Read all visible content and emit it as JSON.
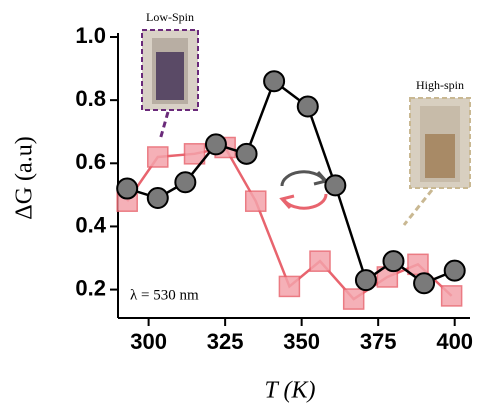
{
  "chart_data": {
    "type": "line",
    "xlabel": "T (K)",
    "ylabel": "ΔG (a.u)",
    "xlim": [
      290,
      405
    ],
    "xticks": [
      300,
      325,
      350,
      375,
      400
    ],
    "ylim": [
      0.11,
      1.0
    ],
    "yticks": [
      0.2,
      0.4,
      0.6,
      0.8,
      {
        "value": 1,
        "label": "1.0"
      }
    ],
    "series": [
      {
        "marker": "square",
        "color": "#e8646e",
        "fill": "#f4a3ab",
        "x": [
          293,
          303,
          315,
          325,
          335,
          346,
          356,
          367,
          378,
          388,
          399
        ],
        "values": [
          0.48,
          0.62,
          0.63,
          0.65,
          0.48,
          0.21,
          0.29,
          0.17,
          0.24,
          0.28,
          0.18
        ]
      },
      {
        "marker": "circle",
        "color": "#000000",
        "fill": "#7a7a7a",
        "x": [
          293,
          303,
          312,
          322,
          332,
          341,
          352,
          361,
          371,
          380,
          390,
          400
        ],
        "values": [
          0.52,
          0.49,
          0.54,
          0.66,
          0.63,
          0.86,
          0.78,
          0.53,
          0.23,
          0.29,
          0.22,
          0.26
        ]
      }
    ],
    "annotations": [
      "Low-Spin",
      "High-spin",
      "λ = 530 nm"
    ]
  }
}
